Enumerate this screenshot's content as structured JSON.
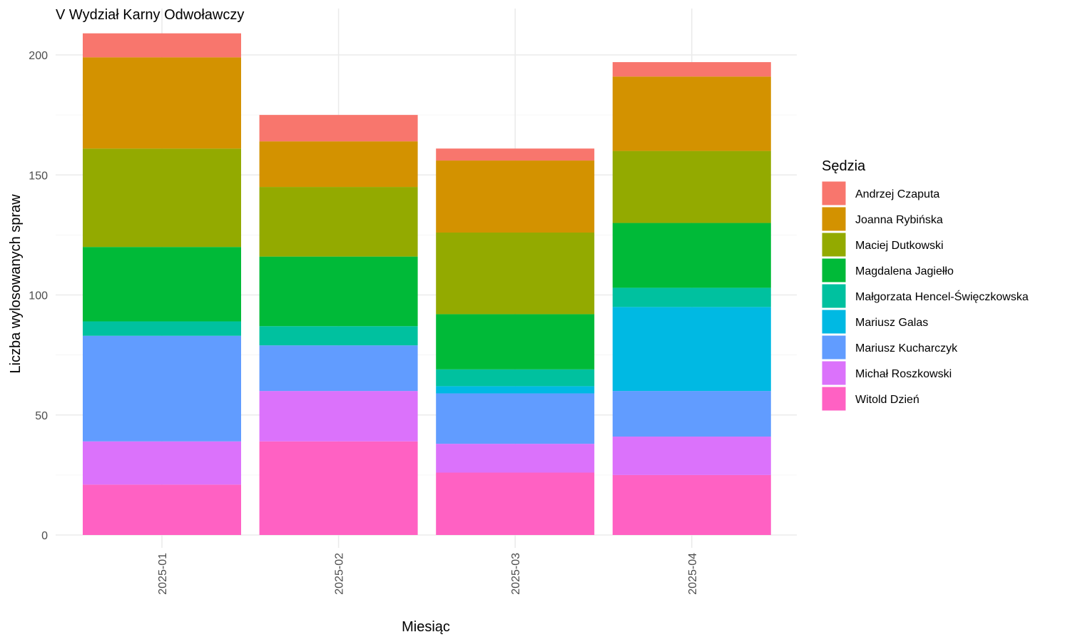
{
  "chart_data": {
    "type": "bar",
    "stacked": true,
    "title": "V Wydział Karny Odwoławczy",
    "xlabel": "Miesiąc",
    "ylabel": "Liczba wylosowanych spraw",
    "ylim": [
      0,
      210
    ],
    "yticks": [
      0,
      50,
      100,
      150,
      200
    ],
    "grid": true,
    "legend_position": "right",
    "legend_title": "Sędzia",
    "categories": [
      "2025-01",
      "2025-02",
      "2025-03",
      "2025-04"
    ],
    "series": [
      {
        "name": "Andrzej Czaputa",
        "color": "#F8766D",
        "values": [
          10,
          11,
          5,
          6
        ]
      },
      {
        "name": "Joanna Rybińska",
        "color": "#D39200",
        "values": [
          38,
          19,
          30,
          31
        ]
      },
      {
        "name": "Maciej Dutkowski",
        "color": "#93AA00",
        "values": [
          41,
          29,
          34,
          30
        ]
      },
      {
        "name": "Magdalena Jagiełło",
        "color": "#00BA38",
        "values": [
          31,
          29,
          23,
          27
        ]
      },
      {
        "name": "Małgorzata Hencel-Święczkowska",
        "color": "#00C19F",
        "values": [
          6,
          8,
          7,
          8
        ]
      },
      {
        "name": "Mariusz Galas",
        "color": "#00B9E3",
        "values": [
          0,
          0,
          3,
          35
        ]
      },
      {
        "name": "Mariusz Kucharczyk",
        "color": "#619CFF",
        "values": [
          44,
          19,
          21,
          19
        ]
      },
      {
        "name": "Michał Roszkowski",
        "color": "#DB72FB",
        "values": [
          18,
          21,
          12,
          16
        ]
      },
      {
        "name": "Witold Dzień",
        "color": "#FF61C3",
        "values": [
          21,
          39,
          26,
          25
        ]
      }
    ]
  }
}
